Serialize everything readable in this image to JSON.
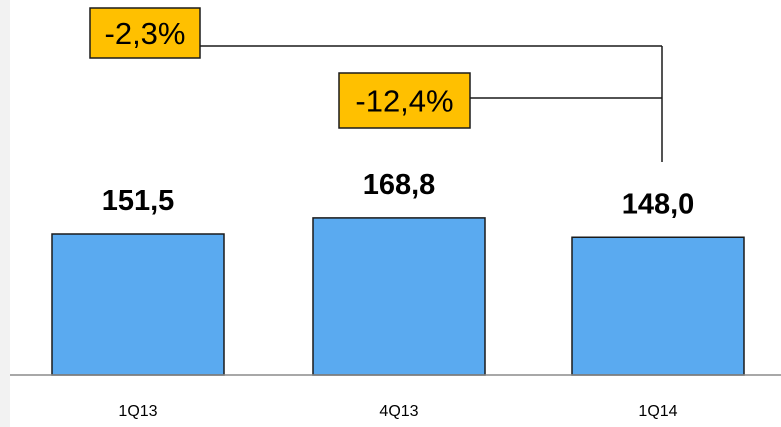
{
  "chart_data": {
    "type": "bar",
    "categories": [
      "1Q13",
      "4Q13",
      "1Q14"
    ],
    "values": [
      151.5,
      168.8,
      148.0
    ],
    "value_labels": [
      "151,5",
      "168,8",
      "148,0"
    ],
    "title": "",
    "xlabel": "",
    "ylabel": "",
    "grid": false,
    "legend": "none",
    "bar_color": "#5aaaf0",
    "bar_edge_color": "#1a1a1a",
    "annotations": [
      {
        "label": "-2,3%",
        "from": "1Q13",
        "to": "1Q14",
        "fill": "#ffc000"
      },
      {
        "label": "-12,4%",
        "from": "4Q13",
        "to": "1Q14",
        "fill": "#ffc000"
      }
    ]
  }
}
